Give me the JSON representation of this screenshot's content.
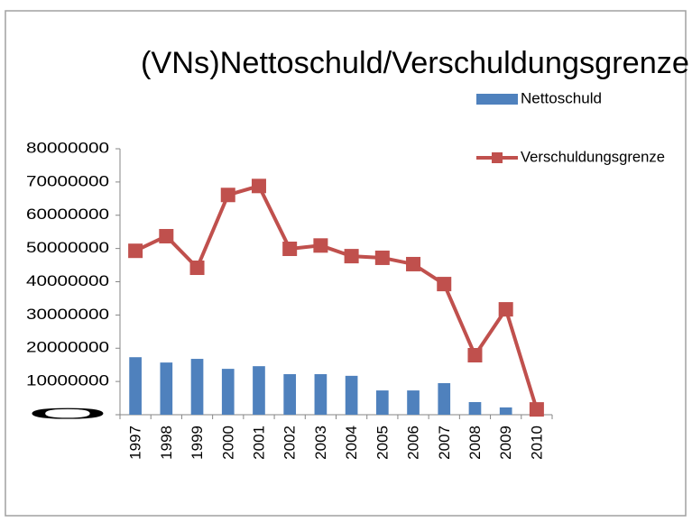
{
  "chart_data": {
    "type": "bar_line",
    "title": "(VNs)Nettoschuld/Verschuldungsgrenze",
    "categories": [
      "1997",
      "1998",
      "1999",
      "2000",
      "2001",
      "2002",
      "2003",
      "2004",
      "2005",
      "2006",
      "2007",
      "2008",
      "2009",
      "2010"
    ],
    "series": [
      {
        "name": "Nettoschuld",
        "type": "bar",
        "color": "#4f81bd",
        "values": [
          17300000,
          15700000,
          16800000,
          13800000,
          14600000,
          12200000,
          12200000,
          11700000,
          7300000,
          7300000,
          9500000,
          3800000,
          2200000,
          0
        ]
      },
      {
        "name": "Verschuldungsgrenze",
        "type": "line",
        "color": "#c0504d",
        "values": [
          49300000,
          53700000,
          44200000,
          66100000,
          68800000,
          49900000,
          50900000,
          47700000,
          47200000,
          45300000,
          39300000,
          17900000,
          31700000,
          1600000
        ]
      }
    ],
    "ylim": [
      0,
      80000000
    ],
    "yticks": [
      0,
      10000000,
      20000000,
      30000000,
      40000000,
      50000000,
      60000000,
      70000000,
      80000000
    ],
    "legend": "right"
  }
}
